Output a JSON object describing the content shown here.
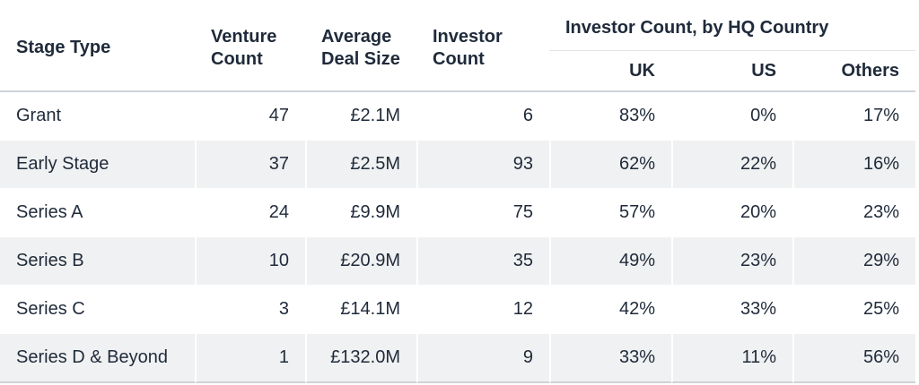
{
  "headers": {
    "stage_type": "Stage Type",
    "venture_count": [
      "Venture",
      "Count"
    ],
    "average_deal_size": [
      "Average",
      "Deal Size"
    ],
    "investor_count": [
      "Investor",
      "Count"
    ],
    "group": "Investor Count, by HQ Country",
    "uk": "UK",
    "us": "US",
    "others": "Others"
  },
  "rows": [
    {
      "stage": "Grant",
      "venture_count": "47",
      "avg_deal": "£2.1M",
      "investor_count": "6",
      "uk": "83%",
      "us": "0%",
      "others": "17%"
    },
    {
      "stage": "Early Stage",
      "venture_count": "37",
      "avg_deal": "£2.5M",
      "investor_count": "93",
      "uk": "62%",
      "us": "22%",
      "others": "16%"
    },
    {
      "stage": "Series A",
      "venture_count": "24",
      "avg_deal": "£9.9M",
      "investor_count": "75",
      "uk": "57%",
      "us": "20%",
      "others": "23%"
    },
    {
      "stage": "Series B",
      "venture_count": "10",
      "avg_deal": "£20.9M",
      "investor_count": "35",
      "uk": "49%",
      "us": "23%",
      "others": "29%"
    },
    {
      "stage": "Series C",
      "venture_count": "3",
      "avg_deal": "£14.1M",
      "investor_count": "12",
      "uk": "42%",
      "us": "33%",
      "others": "25%"
    },
    {
      "stage": "Series D & Beyond",
      "venture_count": "1",
      "avg_deal": "£132.0M",
      "investor_count": "9",
      "uk": "33%",
      "us": "11%",
      "others": "56%"
    }
  ]
}
